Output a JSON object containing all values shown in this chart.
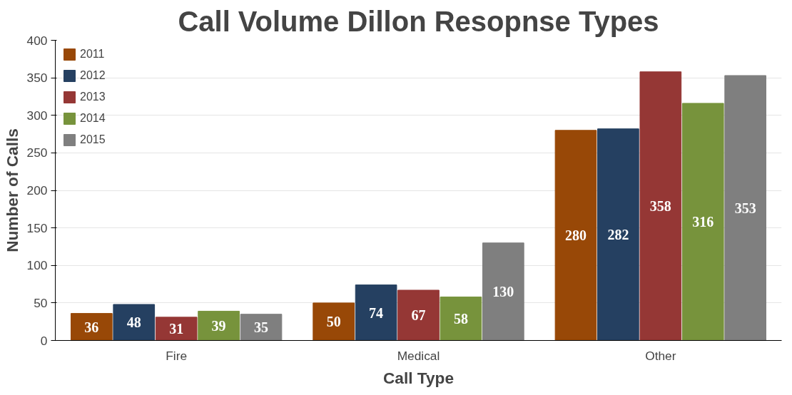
{
  "chart_data": {
    "type": "bar",
    "title": "Call Volume Dillon Resopnse Types",
    "xlabel": "Call Type",
    "ylabel": "Number of Calls",
    "categories": [
      "Fire",
      "Medical",
      "Other"
    ],
    "series": [
      {
        "name": "2011",
        "color": "#984807",
        "values": [
          36,
          50,
          280
        ]
      },
      {
        "name": "2012",
        "color": "#254061",
        "values": [
          48,
          74,
          282
        ]
      },
      {
        "name": "2013",
        "color": "#953735",
        "values": [
          31,
          67,
          358
        ]
      },
      {
        "name": "2014",
        "color": "#77933c",
        "values": [
          39,
          58,
          316
        ]
      },
      {
        "name": "2015",
        "color": "#7f7f7f",
        "values": [
          35,
          130,
          353
        ]
      }
    ],
    "ylim": [
      0,
      400
    ],
    "yticks": [
      0,
      50,
      100,
      150,
      200,
      250,
      300,
      350,
      400
    ],
    "grid": "y",
    "legend": "top left",
    "data_labels": true
  }
}
